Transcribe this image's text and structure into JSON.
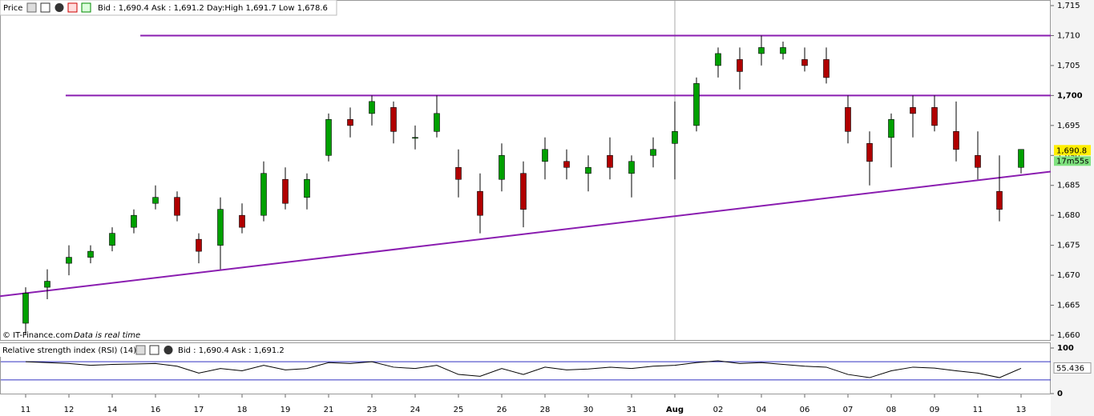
{
  "chart_data": [
    {
      "type": "candlestick",
      "title": "Price",
      "quote": "Bid : 1,690.4 Ask : 1,691.2 Day:High 1,691.7 Low 1,678.6",
      "watermark": "© IT-Finance.com",
      "note": "Data is real time",
      "categories": [
        "11",
        null,
        "12",
        null,
        "14",
        null,
        "16",
        null,
        "17",
        null,
        "18",
        null,
        "19",
        null,
        "21",
        null,
        "23",
        null,
        "24",
        null,
        "25",
        null,
        "26",
        null,
        "28",
        null,
        "30",
        null,
        "31",
        null,
        "Aug",
        null,
        "02",
        null,
        "04",
        null,
        "06",
        null,
        "07",
        null,
        "08",
        null,
        "09",
        null,
        "11",
        null,
        "13"
      ],
      "series": [
        {
          "up_color": "#00a000",
          "down_color": "#b00000",
          "open": [
            1662,
            1668,
            1672,
            1673,
            1675,
            1678,
            1682,
            1683,
            1676,
            1675,
            1680,
            1680,
            1686,
            1683,
            1690,
            1696,
            1697,
            1698,
            1693,
            1694,
            1688,
            1684,
            1686,
            1687,
            1689,
            1689,
            1687,
            1690,
            1687,
            1690,
            1692,
            1695,
            1705,
            1706,
            1707,
            1707,
            1706,
            1706,
            1698,
            1692,
            1693,
            1698,
            1698,
            1694,
            1690,
            1684,
            1688
          ],
          "high": [
            1668,
            1671,
            1675,
            1675,
            1678,
            1681,
            1685,
            1684,
            1677,
            1683,
            1682,
            1689,
            1688,
            1687,
            1697,
            1698,
            1700,
            1699,
            1695,
            1700,
            1691,
            1687,
            1692,
            1689,
            1693,
            1691,
            1690,
            1693,
            1690,
            1693,
            1699,
            1703,
            1708,
            1708,
            1710,
            1709,
            1708,
            1708,
            1700,
            1694,
            1697,
            1700,
            1700,
            1699,
            1694,
            1690,
            1691
          ],
          "low": [
            1660,
            1666,
            1670,
            1672,
            1674,
            1677,
            1681,
            1679,
            1672,
            1671,
            1677,
            1679,
            1681,
            1681,
            1689,
            1693,
            1695,
            1692,
            1691,
            1693,
            1683,
            1677,
            1684,
            1678,
            1686,
            1686,
            1684,
            1686,
            1683,
            1688,
            1686,
            1694,
            1703,
            1701,
            1705,
            1706,
            1704,
            1702,
            1692,
            1685,
            1688,
            1693,
            1694,
            1689,
            1686,
            1679,
            1687
          ],
          "close": [
            1667,
            1669,
            1673,
            1674,
            1677,
            1680,
            1683,
            1680,
            1674,
            1681,
            1678,
            1687,
            1682,
            1686,
            1696,
            1695,
            1699,
            1694,
            1693,
            1697,
            1686,
            1680,
            1690,
            1681,
            1691,
            1688,
            1688,
            1688,
            1689,
            1691,
            1694,
            1702,
            1707,
            1704,
            1708,
            1708,
            1705,
            1703,
            1694,
            1689,
            1696,
            1697,
            1695,
            1691,
            1688,
            1681,
            1691
          ]
        }
      ],
      "trendlines": [
        {
          "color": "#8a1db0",
          "from": [
            5.3,
            1710
          ],
          "to": [
            47.4,
            1710
          ]
        },
        {
          "color": "#8a1db0",
          "from": [
            1.85,
            1700
          ],
          "to": [
            47.4,
            1700
          ]
        },
        {
          "color": "#8a1db0",
          "from": [
            -1.19,
            1666.5
          ],
          "to": [
            47.4,
            1687.3
          ]
        }
      ],
      "last_price": {
        "value": 1690.8,
        "label": "1,690.8"
      },
      "countdown": "17m55s",
      "ylim": [
        1659,
        1716
      ],
      "yticks": [
        {
          "value": 1715,
          "label": "1,715"
        },
        {
          "value": 1710,
          "label": "1,710"
        },
        {
          "value": 1705,
          "label": "1,705"
        },
        {
          "value": 1700,
          "label": "1,700"
        },
        {
          "value": 1695,
          "label": "1,695"
        },
        {
          "value": 1690,
          "label": "1,690"
        },
        {
          "value": 1685,
          "label": "1,685"
        },
        {
          "value": 1680,
          "label": "1,680"
        },
        {
          "value": 1675,
          "label": "1,675"
        },
        {
          "value": 1670,
          "label": "1,670"
        },
        {
          "value": 1665,
          "label": "1,665"
        },
        {
          "value": 1660,
          "label": "1,660"
        }
      ]
    },
    {
      "type": "line",
      "title": "Relative strength index (RSI) (14)",
      "quote": "Bid : 1,690.4 Ask : 1,691.2",
      "color": "#000000",
      "level_color": "#3030c0",
      "levels": [
        70,
        30
      ],
      "values": [
        70,
        68,
        66,
        62,
        64,
        65,
        66,
        60,
        45,
        55,
        50,
        62,
        52,
        55,
        68,
        66,
        70,
        58,
        55,
        62,
        42,
        38,
        55,
        42,
        58,
        52,
        54,
        58,
        55,
        60,
        62,
        68,
        72,
        66,
        68,
        64,
        60,
        58,
        42,
        35,
        50,
        58,
        56,
        50,
        45,
        35,
        55.436
      ],
      "ylim": [
        0,
        100
      ],
      "yticks": [
        100,
        0
      ]
    }
  ]
}
